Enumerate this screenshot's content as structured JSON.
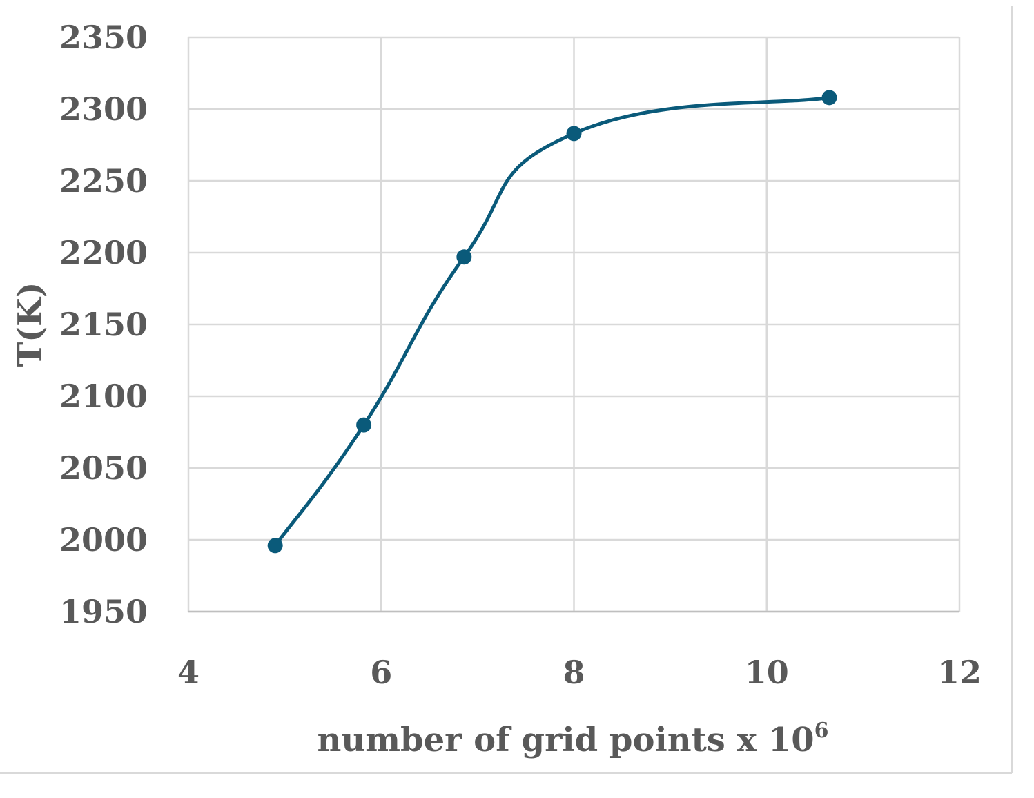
{
  "chart_data": {
    "type": "line",
    "smooth": true,
    "title": "",
    "xlabel": "number of grid points x 10",
    "xlabel_superscript": "6",
    "ylabel": "T(K)",
    "xlim": [
      4,
      12
    ],
    "ylim": [
      1950,
      2350
    ],
    "x_ticks": [
      "4",
      "6",
      "8",
      "10",
      "12"
    ],
    "y_ticks": [
      "1950",
      "2000",
      "2050",
      "2100",
      "2150",
      "2200",
      "2250",
      "2300",
      "2350"
    ],
    "grid": true,
    "legend": "none",
    "series": [
      {
        "color": "#0a5a7a",
        "x": [
          4.9,
          5.82,
          6.86,
          8.0,
          10.65
        ],
        "y": [
          1996,
          2080,
          2197,
          2283,
          2308
        ]
      }
    ]
  }
}
